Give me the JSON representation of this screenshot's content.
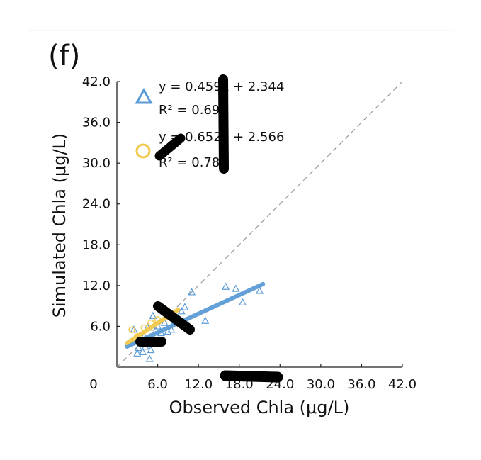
{
  "chart_data": {
    "type": "scatter",
    "panel_label": "(f)",
    "xlabel": "Observed Chla (μg/L)",
    "ylabel": "Simulated Chla (μg/L)",
    "xlim": [
      0,
      42
    ],
    "ylim": [
      0,
      42
    ],
    "x_ticks": [
      "0",
      "6.0",
      "12.0",
      "18.0",
      "24.0",
      "30.0",
      "36.0",
      "42.0"
    ],
    "y_ticks": [
      "6.0",
      "12.0",
      "18.0",
      "24.0",
      "30.0",
      "36.0",
      "42.0"
    ],
    "one_to_one_line": true,
    "grid": false,
    "legend_position": "top-left",
    "series": [
      {
        "marker": "triangle",
        "color": "#5b9bd5",
        "equation": "y = 0.459x + 2.344",
        "r2_label": "R² = 0.690",
        "fit": {
          "slope": 0.459,
          "intercept": 2.344,
          "x_range": [
            1.5,
            21.5
          ]
        },
        "points": [
          [
            2.5,
            5.5
          ],
          [
            3.0,
            2.0
          ],
          [
            3.2,
            2.8
          ],
          [
            3.5,
            3.5
          ],
          [
            3.8,
            2.2
          ],
          [
            4.0,
            4.5
          ],
          [
            4.2,
            3.0
          ],
          [
            4.5,
            5.8
          ],
          [
            4.8,
            1.2
          ],
          [
            5.0,
            2.5
          ],
          [
            5.3,
            7.5
          ],
          [
            5.5,
            4.0
          ],
          [
            6.0,
            6.0
          ],
          [
            6.5,
            5.0
          ],
          [
            7.0,
            6.5
          ],
          [
            7.5,
            5.2
          ],
          [
            8.0,
            5.5
          ],
          [
            8.5,
            6.8
          ],
          [
            9.0,
            7.0
          ],
          [
            9.5,
            8.2
          ],
          [
            10.0,
            8.8
          ],
          [
            11.0,
            11.0
          ],
          [
            13.0,
            6.8
          ],
          [
            16.0,
            11.8
          ],
          [
            17.5,
            11.5
          ],
          [
            18.5,
            9.5
          ],
          [
            21.0,
            11.2
          ]
        ]
      },
      {
        "marker": "circle",
        "color": "#f2c94c",
        "equation": "y = 0.652x + 2.566",
        "r2_label": "R² = 0.783",
        "fit": {
          "slope": 0.652,
          "intercept": 2.566,
          "x_range": [
            1.5,
            9.0
          ]
        },
        "points": [
          [
            2.2,
            5.5
          ],
          [
            3.0,
            4.5
          ],
          [
            4.0,
            5.8
          ],
          [
            5.0,
            6.5
          ],
          [
            6.0,
            7.0
          ],
          [
            7.5,
            8.0
          ]
        ]
      }
    ]
  }
}
